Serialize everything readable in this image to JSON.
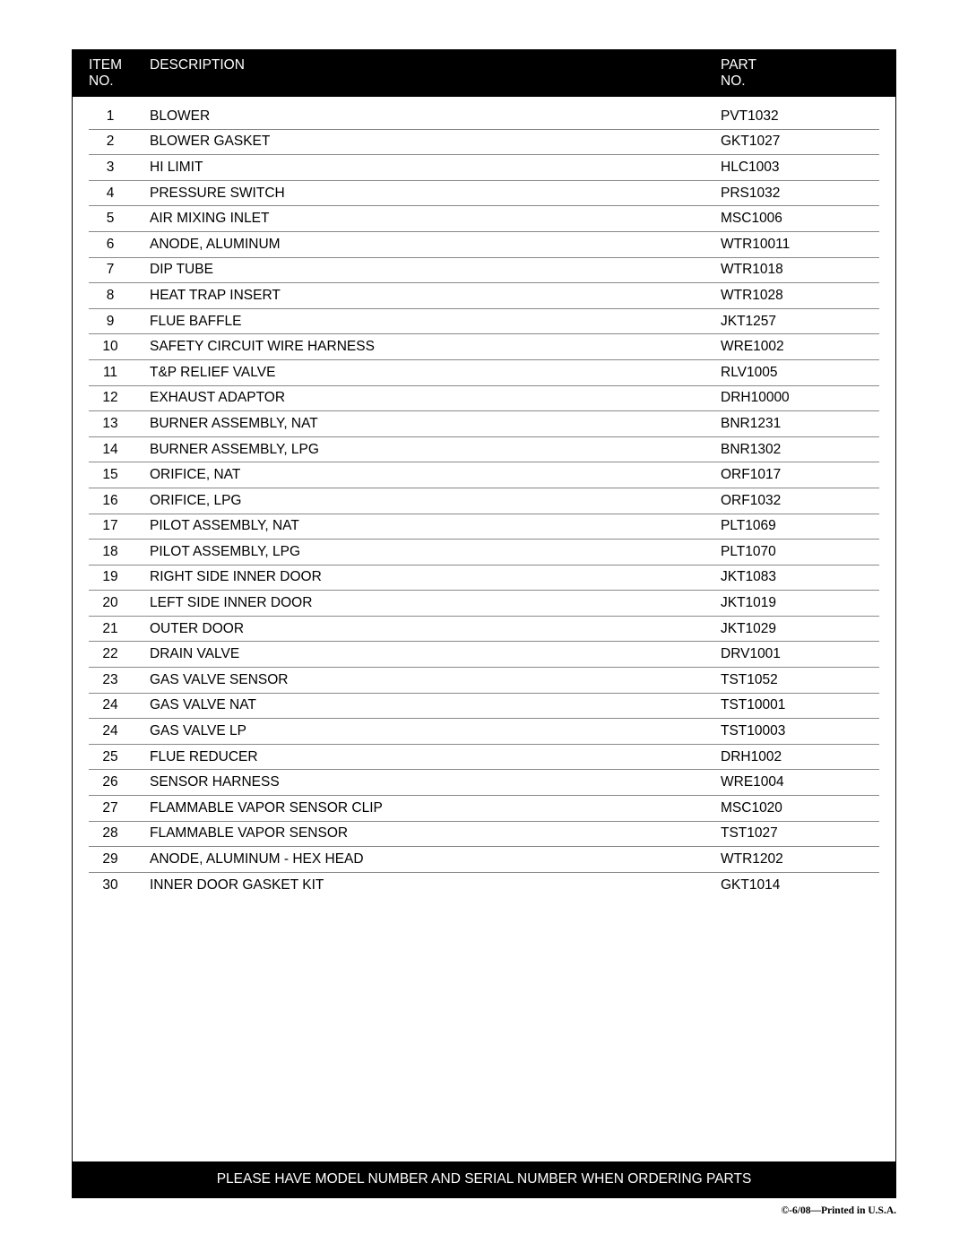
{
  "table": {
    "header": {
      "item_line1": "ITEM",
      "item_line2": "NO.",
      "description": "DESCRIPTION",
      "part_line1": "PART",
      "part_line2": "NO."
    },
    "rows": [
      {
        "item": "1",
        "description": "BLOWER",
        "part": "PVT1032"
      },
      {
        "item": "2",
        "description": "BLOWER GASKET",
        "part": "GKT1027"
      },
      {
        "item": "3",
        "description": "HI LIMIT",
        "part": "HLC1003"
      },
      {
        "item": "4",
        "description": "PRESSURE SWITCH",
        "part": "PRS1032"
      },
      {
        "item": "5",
        "description": "AIR MIXING INLET",
        "part": "MSC1006"
      },
      {
        "item": "6",
        "description": "ANODE, ALUMINUM",
        "part": "WTR10011"
      },
      {
        "item": "7",
        "description": "DIP TUBE",
        "part": "WTR1018"
      },
      {
        "item": "8",
        "description": "HEAT TRAP INSERT",
        "part": "WTR1028"
      },
      {
        "item": "9",
        "description": "FLUE BAFFLE",
        "part": "JKT1257"
      },
      {
        "item": "10",
        "description": "SAFETY CIRCUIT WIRE HARNESS",
        "part": "WRE1002"
      },
      {
        "item": "11",
        "description": "T&P RELIEF VALVE",
        "part": "RLV1005"
      },
      {
        "item": "12",
        "description": "EXHAUST ADAPTOR",
        "part": "DRH10000"
      },
      {
        "item": "13",
        "description": "BURNER ASSEMBLY, NAT",
        "part": "BNR1231"
      },
      {
        "item": "14",
        "description": "BURNER ASSEMBLY, LPG",
        "part": "BNR1302"
      },
      {
        "item": "15",
        "description": "ORIFICE, NAT",
        "part": "ORF1017"
      },
      {
        "item": "16",
        "description": "ORIFICE, LPG",
        "part": "ORF1032"
      },
      {
        "item": "17",
        "description": "PILOT ASSEMBLY, NAT",
        "part": "PLT1069"
      },
      {
        "item": "18",
        "description": "PILOT ASSEMBLY, LPG",
        "part": "PLT1070"
      },
      {
        "item": "19",
        "description": "RIGHT SIDE INNER DOOR",
        "part": "JKT1083"
      },
      {
        "item": "20",
        "description": "LEFT SIDE INNER DOOR",
        "part": "JKT1019"
      },
      {
        "item": "21",
        "description": "OUTER DOOR",
        "part": "JKT1029"
      },
      {
        "item": "22",
        "description": "DRAIN VALVE",
        "part": "DRV1001"
      },
      {
        "item": "23",
        "description": "GAS VALVE SENSOR",
        "part": "TST1052"
      },
      {
        "item": "24",
        "description": "GAS VALVE NAT",
        "part": "TST10001"
      },
      {
        "item": "24",
        "description": "GAS VALVE LP",
        "part": "TST10003"
      },
      {
        "item": "25",
        "description": "FLUE REDUCER",
        "part": "DRH1002"
      },
      {
        "item": "26",
        "description": "SENSOR HARNESS",
        "part": "WRE1004"
      },
      {
        "item": "27",
        "description": "FLAMMABLE VAPOR SENSOR CLIP",
        "part": "MSC1020"
      },
      {
        "item": "28",
        "description": "FLAMMABLE VAPOR SENSOR",
        "part": "TST1027"
      },
      {
        "item": "29",
        "description": "ANODE, ALUMINUM - HEX HEAD",
        "part": "WTR1202"
      },
      {
        "item": "30",
        "description": "INNER DOOR GASKET KIT",
        "part": "GKT1014"
      }
    ],
    "footer": "PLEASE HAVE MODEL NUMBER AND SERIAL NUMBER WHEN ORDERING PARTS",
    "colors": {
      "header_bg": "#000000",
      "header_text": "#ffffff",
      "row_text": "#000000",
      "row_border": "#888888",
      "body_bg": "#ffffff"
    },
    "column_widths": {
      "item": 72,
      "part": 195
    },
    "font_size": 15.5
  },
  "page_footer": "©-6/08—Printed in U.S.A."
}
